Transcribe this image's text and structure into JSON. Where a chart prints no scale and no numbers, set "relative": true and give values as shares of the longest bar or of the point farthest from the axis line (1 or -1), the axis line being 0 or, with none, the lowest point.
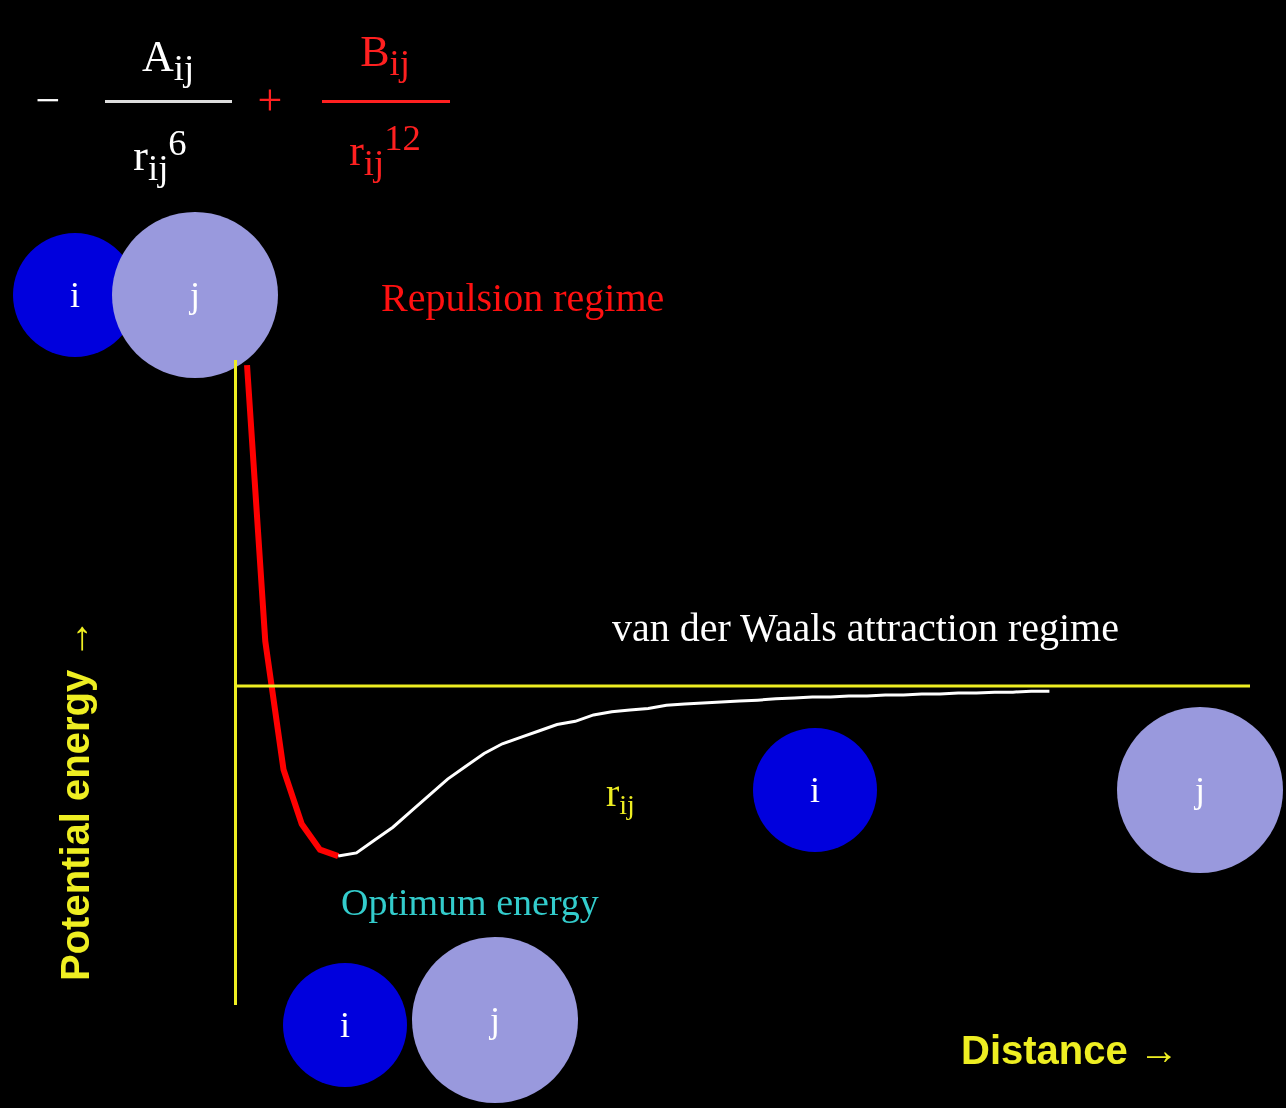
{
  "chart_data": {
    "type": "line",
    "relative": true,
    "ref_lines": [
      {
        "axis": "y",
        "value": 0,
        "color": "#eeee22"
      }
    ],
    "xlabel": "Distance →",
    "ylabel": "Potential energy →",
    "annotations": [
      "−",
      "A$_{ij}$",
      "r$_{ij}$$^{6}$",
      "+",
      "B$_{ij}$",
      "r$_{ij}$$^{12}$",
      "Repulsion regime",
      "van der Waals attraction regime",
      "r$_{ij}$",
      "Optimum energy",
      "i",
      "j",
      "i",
      "j",
      "i",
      "j"
    ],
    "categories": [
      null,
      null,
      null,
      null,
      null,
      null,
      null,
      null,
      null,
      null,
      null,
      null,
      null,
      null,
      null,
      null,
      null,
      null,
      null,
      null,
      null,
      null,
      null,
      null,
      null,
      null,
      null,
      null,
      null,
      null,
      null,
      null,
      null,
      null,
      null,
      null,
      null,
      null,
      null,
      null,
      null,
      null,
      null,
      null,
      null
    ],
    "series": [
      {
        "color": "#ff0000",
        "values": [
          1.0,
          0.14,
          -0.26,
          -0.43,
          -0.51,
          -0.53,
          null,
          null,
          null,
          null,
          null,
          null,
          null,
          null,
          null,
          null,
          null,
          null,
          null,
          null,
          null,
          null,
          null,
          null,
          null,
          null,
          null,
          null,
          null,
          null,
          null,
          null,
          null,
          null,
          null,
          null,
          null,
          null,
          null,
          null,
          null,
          null,
          null,
          null,
          null
        ]
      },
      {
        "color": "#ffffff",
        "values": [
          null,
          null,
          null,
          null,
          null,
          -0.53,
          -0.52,
          -0.48,
          -0.44,
          -0.39,
          -0.34,
          -0.29,
          -0.25,
          -0.21,
          -0.18,
          -0.16,
          -0.14,
          -0.12,
          -0.11,
          -0.09,
          -0.08,
          -0.075,
          -0.07,
          -0.06,
          -0.056,
          -0.053,
          -0.05,
          -0.047,
          -0.044,
          -0.04,
          -0.037,
          -0.034,
          -0.034,
          -0.031,
          -0.031,
          -0.028,
          -0.028,
          -0.025,
          -0.025,
          -0.022,
          -0.022,
          -0.019,
          -0.019,
          -0.016,
          -0.016
        ]
      }
    ]
  }
}
